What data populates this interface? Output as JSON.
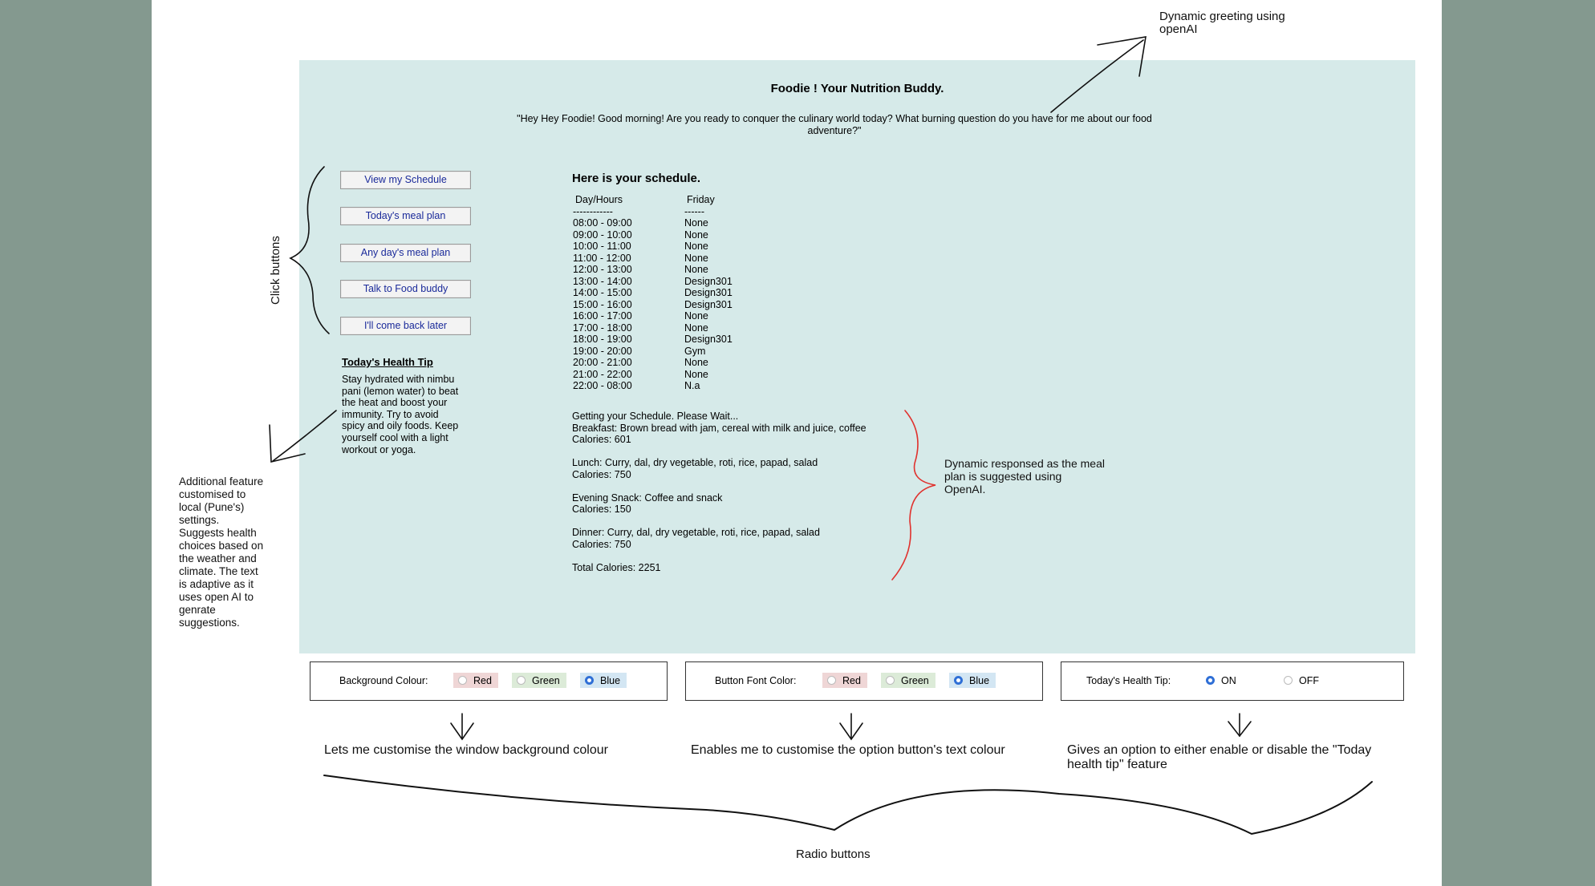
{
  "app": {
    "title": "Foodie ! Your Nutrition Buddy.",
    "greeting": "\"Hey Hey Foodie! Good morning! Are you ready to conquer the culinary world today? What burning question do you have for me about our food adventure?\""
  },
  "buttons": [
    {
      "label": "View my Schedule"
    },
    {
      "label": "Today's meal plan"
    },
    {
      "label": "Any day's meal plan"
    },
    {
      "label": "Talk to Food buddy"
    },
    {
      "label": "I'll come back later"
    }
  ],
  "health_tip": {
    "heading": "Today's Health Tip",
    "text": "Stay hydrated with nimbu pani (lemon water) to beat the heat and boost your immunity. Try to avoid spicy and oily foods. Keep yourself cool with a light workout or yoga."
  },
  "schedule": {
    "heading": "Here is your schedule.",
    "col1_header": "Day/Hours",
    "col2_header": "Friday",
    "col1_rule": "------------",
    "col2_rule": "------",
    "rows": [
      {
        "hours": "08:00 - 09:00",
        "value": "None"
      },
      {
        "hours": "09:00 - 10:00",
        "value": "None"
      },
      {
        "hours": "10:00 - 11:00",
        "value": "None"
      },
      {
        "hours": "11:00 - 12:00",
        "value": "None"
      },
      {
        "hours": "12:00 - 13:00",
        "value": "None"
      },
      {
        "hours": "13:00 - 14:00",
        "value": "Design301"
      },
      {
        "hours": "14:00 - 15:00",
        "value": "Design301"
      },
      {
        "hours": "15:00 - 16:00",
        "value": "Design301"
      },
      {
        "hours": "16:00 - 17:00",
        "value": "None"
      },
      {
        "hours": "17:00 - 18:00",
        "value": "None"
      },
      {
        "hours": "18:00 - 19:00",
        "value": "Design301"
      },
      {
        "hours": "19:00 - 20:00",
        "value": "Gym"
      },
      {
        "hours": "20:00 - 21:00",
        "value": "None"
      },
      {
        "hours": "21:00 - 22:00",
        "value": "None"
      },
      {
        "hours": "22:00 - 08:00",
        "value": "N.a"
      }
    ]
  },
  "meal_plan": {
    "status": "Getting your Schedule. Please Wait...",
    "breakfast": "Breakfast: Brown bread with jam, cereal with milk and juice, coffee",
    "breakfast_cal": "Calories: 601",
    "lunch": "Lunch: Curry, dal, dry vegetable, roti, rice, papad, salad",
    "lunch_cal": "Calories: 750",
    "snack": "Evening Snack: Coffee and snack",
    "snack_cal": "Calories: 150",
    "dinner": "Dinner: Curry, dal, dry vegetable, roti, rice, papad, salad",
    "dinner_cal": "Calories: 750",
    "total": "Total Calories: 2251"
  },
  "settings": {
    "background": {
      "label": "Background Colour:",
      "options": [
        {
          "label": "Red",
          "selected": false,
          "tint": "#efd6d6"
        },
        {
          "label": "Green",
          "selected": false,
          "tint": "#dcebd8"
        },
        {
          "label": "Blue",
          "selected": true,
          "tint": "#d3e6f3"
        }
      ]
    },
    "button_font": {
      "label": "Button Font Color:",
      "options": [
        {
          "label": "Red",
          "selected": false,
          "tint": "#efd6d6"
        },
        {
          "label": "Green",
          "selected": false,
          "tint": "#dcebd8"
        },
        {
          "label": "Blue",
          "selected": true,
          "tint": "#d3e6f3"
        }
      ]
    },
    "health_tip_toggle": {
      "label": "Today's Health Tip:",
      "options": [
        {
          "label": "ON",
          "selected": true
        },
        {
          "label": "OFF",
          "selected": false
        }
      ]
    }
  },
  "annotations": {
    "greeting_note": "Dynamic greeting using openAI",
    "click_buttons": "Click buttons",
    "health_feature": "Additional feature customised to local (Pune's) settings. Suggests health choices based  on the weather and climate. The text is adaptive as it uses open AI  to genrate suggestions.",
    "meal_note": "Dynamic responsed as the meal plan  is suggested using OpenAI.",
    "bg_note": "Lets me customise the window background colour",
    "font_note": "Enables me to customise the option button's text colour",
    "tip_note": "Gives  an option to either  enable or disable  the \"Today health tip\" feature",
    "radio_buttons": "Radio buttons"
  },
  "colors": {
    "window_bg": "#d6eae9",
    "button_text": "#1a2a9a",
    "radio_selected": "#2f6fd6",
    "frame": "#84998f",
    "bracket_red": "#e0322e"
  }
}
